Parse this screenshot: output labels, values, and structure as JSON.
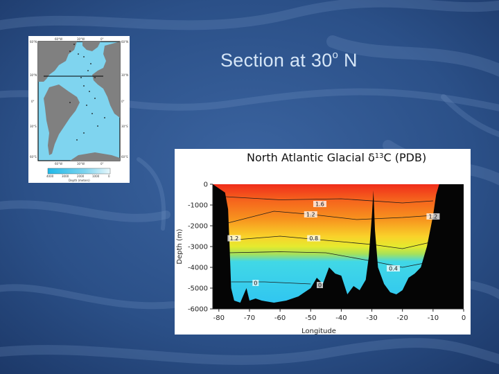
{
  "slide": {
    "title_main": "Section at 30",
    "title_sup": "o",
    "title_end": " N",
    "colors": {
      "background": "#2a4f86",
      "title": "#d6e6f7"
    }
  },
  "map": {
    "lat_labels": [
      "60°N",
      "30°N",
      "0°",
      "30°S",
      "60°S"
    ],
    "lon_labels": [
      "60°W",
      "30°W",
      "0°"
    ],
    "colorbar_ticks": [
      "4000",
      "3000",
      "2000",
      "1000",
      "0"
    ],
    "colorbar_label": "Depth (meters)",
    "colors": {
      "ocean": "#7fd4ef",
      "land": "#808080",
      "section_line": "#000000"
    }
  },
  "chart_data": {
    "type": "heatmap",
    "title_prefix": "North Atlantic Glacial ",
    "title_delta": "δ",
    "title_sup": "13",
    "title_suffix": "C (PDB)",
    "xlabel": "Longitude",
    "ylabel": "Depth (m)",
    "xlim": [
      -82,
      0
    ],
    "ylim": [
      -6000,
      0
    ],
    "x_ticks": [
      -80,
      -70,
      -60,
      -50,
      -40,
      -30,
      -20,
      -10,
      0
    ],
    "y_ticks": [
      0,
      -1000,
      -2000,
      -3000,
      -4000,
      -5000,
      -6000
    ],
    "colorscale": [
      "#f02d1a",
      "#f7931e",
      "#f9ea2a",
      "#a6e15a",
      "#41d8e6",
      "#2ec3f2"
    ],
    "contour_labels": [
      {
        "text": "1.6",
        "x": -47,
        "y": -1000
      },
      {
        "text": "1.2",
        "x": -50,
        "y": -1500
      },
      {
        "text": "1.2",
        "x": -75,
        "y": -2650
      },
      {
        "text": "0.8",
        "x": -49,
        "y": -2650
      },
      {
        "text": "1.2",
        "x": -10,
        "y": -1600
      },
      {
        "text": "0.4",
        "x": -23,
        "y": -4100
      },
      {
        "text": "0",
        "x": -68,
        "y": -4800
      },
      {
        "text": "0",
        "x": -47,
        "y": -4900
      }
    ],
    "bathymetry_profile": [
      {
        "x": -82,
        "y": 0
      },
      {
        "x": -80,
        "y": -200
      },
      {
        "x": -78,
        "y": -400
      },
      {
        "x": -77,
        "y": -1200
      },
      {
        "x": -76.5,
        "y": -3000
      },
      {
        "x": -76,
        "y": -5000
      },
      {
        "x": -75,
        "y": -5600
      },
      {
        "x": -73,
        "y": -5700
      },
      {
        "x": -71,
        "y": -5000
      },
      {
        "x": -70,
        "y": -5600
      },
      {
        "x": -68,
        "y": -5500
      },
      {
        "x": -66,
        "y": -5600
      },
      {
        "x": -62,
        "y": -5700
      },
      {
        "x": -58,
        "y": -5600
      },
      {
        "x": -54,
        "y": -5400
      },
      {
        "x": -52,
        "y": -5200
      },
      {
        "x": -50,
        "y": -5000
      },
      {
        "x": -48,
        "y": -4500
      },
      {
        "x": -46,
        "y": -4800
      },
      {
        "x": -44,
        "y": -4000
      },
      {
        "x": -42,
        "y": -4300
      },
      {
        "x": -40,
        "y": -4400
      },
      {
        "x": -38,
        "y": -5300
      },
      {
        "x": -36,
        "y": -4900
      },
      {
        "x": -34,
        "y": -5100
      },
      {
        "x": -32,
        "y": -4600
      },
      {
        "x": -31,
        "y": -3500
      },
      {
        "x": -30,
        "y": -1500
      },
      {
        "x": -29.5,
        "y": -300
      },
      {
        "x": -29,
        "y": -2200
      },
      {
        "x": -28,
        "y": -4000
      },
      {
        "x": -26,
        "y": -4800
      },
      {
        "x": -24,
        "y": -5200
      },
      {
        "x": -22,
        "y": -5300
      },
      {
        "x": -20,
        "y": -5100
      },
      {
        "x": -18,
        "y": -4500
      },
      {
        "x": -16,
        "y": -4300
      },
      {
        "x": -14,
        "y": -4000
      },
      {
        "x": -12,
        "y": -3000
      },
      {
        "x": -10,
        "y": -1500
      },
      {
        "x": -9,
        "y": -500
      },
      {
        "x": -8,
        "y": 0
      }
    ],
    "contours": [
      {
        "level": 1.6,
        "points": [
          {
            "x": -78,
            "y": -600
          },
          {
            "x": -60,
            "y": -750
          },
          {
            "x": -40,
            "y": -700
          },
          {
            "x": -20,
            "y": -900
          },
          {
            "x": -10,
            "y": -800
          }
        ]
      },
      {
        "level": 1.2,
        "points": [
          {
            "x": -78,
            "y": -1900
          },
          {
            "x": -62,
            "y": -1300
          },
          {
            "x": -50,
            "y": -1450
          },
          {
            "x": -35,
            "y": -1700
          },
          {
            "x": -20,
            "y": -1600
          },
          {
            "x": -10,
            "y": -1500
          }
        ]
      },
      {
        "level": 0.8,
        "points": [
          {
            "x": -77,
            "y": -2700
          },
          {
            "x": -60,
            "y": -2500
          },
          {
            "x": -45,
            "y": -2700
          },
          {
            "x": -30,
            "y": -2900
          },
          {
            "x": -20,
            "y": -3100
          },
          {
            "x": -11,
            "y": -2800
          }
        ]
      },
      {
        "level": 0.4,
        "points": [
          {
            "x": -77,
            "y": -3300
          },
          {
            "x": -60,
            "y": -3250
          },
          {
            "x": -45,
            "y": -3300
          },
          {
            "x": -30,
            "y": -3700
          },
          {
            "x": -20,
            "y": -4000
          },
          {
            "x": -13,
            "y": -3800
          }
        ]
      },
      {
        "level": 0,
        "points": [
          {
            "x": -76,
            "y": -4700
          },
          {
            "x": -65,
            "y": -4700
          },
          {
            "x": -50,
            "y": -4800
          }
        ]
      }
    ]
  }
}
